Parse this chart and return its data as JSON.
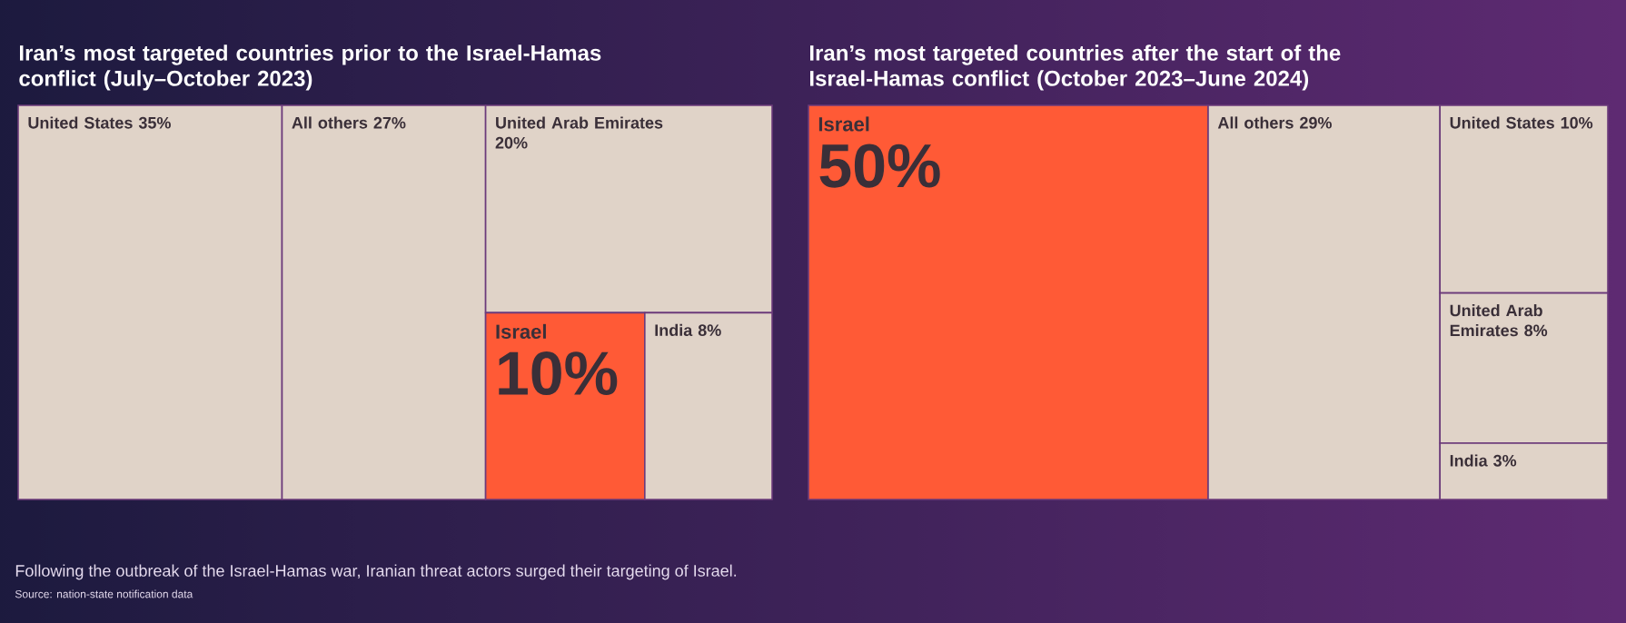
{
  "chart_data": [
    {
      "type": "other",
      "title": "Iran’s most targeted countries prior to the Israel-Hamas conflict (July–October 2023)",
      "categories": [
        "United States",
        "All others",
        "United Arab Emirates",
        "Israel",
        "India"
      ],
      "values": [
        35,
        27,
        20,
        10,
        8
      ],
      "value_labels": [
        "35%",
        "27%",
        "20%",
        "10%",
        "8%"
      ],
      "colors": [
        "#e0d3c8",
        "#e0d3c8",
        "#e0d3c8",
        "#ff5a36",
        "#e0d3c8"
      ],
      "annotations": [
        "Following the outbreak of the Israel-Hamas war, Iranian threat actors surged their targeting of Israel.",
        "Source: nation-state notification data"
      ]
    },
    {
      "type": "other",
      "title": "Iran’s most targeted countries after the start of the Israel-Hamas conflict (October 2023–June 2024)",
      "categories": [
        "Israel",
        "All others",
        "United States",
        "United Arab Emirates",
        "India"
      ],
      "values": [
        50,
        29,
        10,
        8,
        3
      ],
      "value_labels": [
        "50%",
        "29%",
        "10%",
        "8%",
        "3%"
      ],
      "colors": [
        "#ff5a36",
        "#e0d3c8",
        "#e0d3c8",
        "#e0d3c8",
        "#e0d3c8"
      ]
    }
  ]
}
